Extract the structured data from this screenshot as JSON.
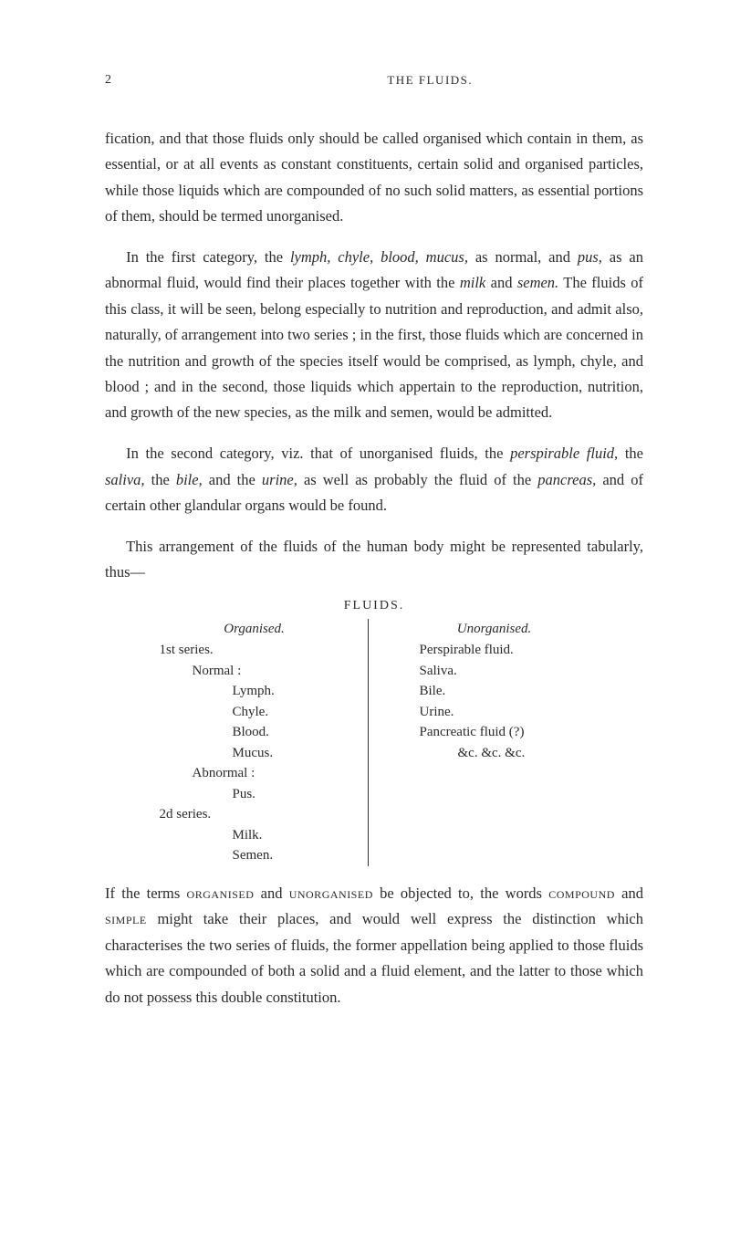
{
  "header": {
    "page_number": "2",
    "running_title": "THE FLUIDS."
  },
  "paragraphs": {
    "p1_a": "fication, and that those fluids only should be called organised which contain in them, as essential, or at all events as constant constituents, certain solid and organised particles, while those liquids which are compounded of no such solid matters, as essential portions of them, should be termed unorganised.",
    "p2_a": "In the first category, the ",
    "p2_i1": "lymph, chyle, blood, mucus,",
    "p2_b": " as normal, and ",
    "p2_i2": "pus,",
    "p2_c": " as an abnormal fluid, would find their places together with the ",
    "p2_i3": "milk",
    "p2_d": " and ",
    "p2_i4": "semen.",
    "p2_e": " The fluids of this class, it will be seen, belong especially to nutrition and reproduction, and admit also, naturally, of arrangement into two series ; in the first, those fluids which are concerned in the nutrition and growth of the species itself would be comprised, as lymph, chyle, and blood ; and in the second, those liquids which appertain to the reproduction, nutrition, and growth of the new species, as the milk and semen, would be admitted.",
    "p3_a": "In the second category, viz. that of unorganised fluids, the ",
    "p3_i1": "perspirable fluid,",
    "p3_b": " the ",
    "p3_i2": "saliva,",
    "p3_c": " the ",
    "p3_i3": "bile,",
    "p3_d": " and the ",
    "p3_i4": "urine,",
    "p3_e": " as well as probably the fluid of the ",
    "p3_i5": "pancreas,",
    "p3_f": " and of certain other glandular organs would be found.",
    "p4_a": "This arrangement of the fluids of the human body might be represented tabularly, thus—",
    "p5_a": "If the terms ",
    "p5_s1": "organised",
    "p5_b": " and ",
    "p5_s2": "unorganised",
    "p5_c": " be objected to, the words ",
    "p5_s3": "compound",
    "p5_d": " and ",
    "p5_s4": "simple",
    "p5_e": " might take their places, and would well express the distinction which characterises the two series of fluids, the former appellation being applied to those fluids which are compounded of both a solid and a fluid element, and the latter to those which do not possess this double constitution."
  },
  "fluids": {
    "heading": "FLUIDS.",
    "left_head": "Organised.",
    "right_head": "Unorganised.",
    "left": {
      "r1": "1st series.",
      "r2": "Normal :",
      "r3": "Lymph.",
      "r4": "Chyle.",
      "r5": "Blood.",
      "r6": "Mucus.",
      "r7": "Abnormal :",
      "r8": "Pus.",
      "r9": "2d series.",
      "r10": "Milk.",
      "r11": "Semen."
    },
    "right": {
      "r1": "Perspirable fluid.",
      "r2": "Saliva.",
      "r3": "Bile.",
      "r4": "Urine.",
      "r5": "Pancreatic fluid (?)",
      "r6": "&c. &c. &c."
    }
  }
}
